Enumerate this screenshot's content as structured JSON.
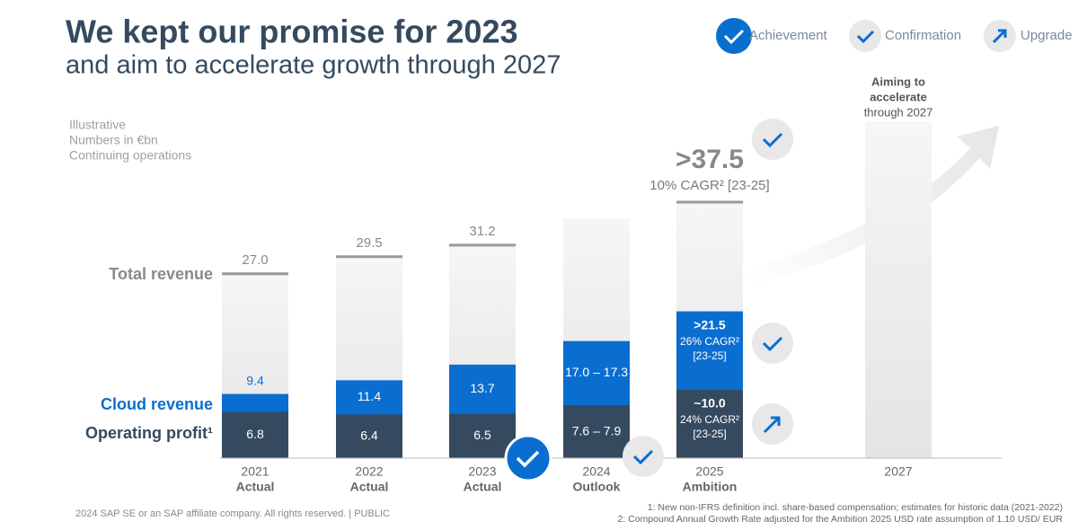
{
  "title": "We kept our promise for 2023",
  "subtitle": "and aim to accelerate growth through 2027",
  "legend": [
    "Achievement",
    "Confirmation",
    "Upgrade"
  ],
  "notes": [
    "Illustrative",
    "Numbers in €bn",
    "Continuing operations"
  ],
  "aim_note": [
    "Aiming to",
    "accelerate",
    "through 2027"
  ],
  "copyright": "2024 SAP SE or an SAP affiliate company. All rights reserved.  | PUBLIC",
  "footnotes": [
    "1: New non-IFRS definition incl. share-based compensation; estimates for historic data (2021-2022)",
    "2: Compound Annual Growth Rate adjusted for the Ambition 2025 USD rate assumption of 1.10 USD/ EUR"
  ],
  "chart_data": {
    "type": "overlap_bar",
    "categories": [
      "2021",
      "2022",
      "2023",
      "2024",
      "2025",
      "2027"
    ],
    "category_sublabels": [
      "Actual",
      "Actual",
      "Actual",
      "Outlook",
      "Ambition",
      null
    ],
    "ylim": [
      0,
      50
    ],
    "total_annotation": "10% CAGR² [23-25]",
    "series": [
      {
        "name": "Total revenue",
        "color": "#e6e6e6",
        "values": [
          27.0,
          29.5,
          31.2,
          35.1,
          37.5,
          49.3
        ],
        "value_labels": [
          "27.0",
          "29.5",
          "31.2",
          null,
          ">37.5",
          null
        ]
      },
      {
        "name": "Cloud revenue",
        "color": "#0a6ed1",
        "values": [
          9.4,
          11.4,
          13.7,
          17.15,
          21.5,
          null
        ],
        "value_labels": [
          "9.4",
          "11.4",
          "13.7",
          "17.0 – 17.3",
          ">21.5",
          null
        ],
        "annotations": [
          null,
          null,
          null,
          null,
          [
            "26% CAGR²",
            "[23-25]"
          ],
          null
        ]
      },
      {
        "name": "Operating profit¹",
        "color": "#354a5f",
        "values": [
          6.8,
          6.4,
          6.5,
          7.75,
          10.0,
          null
        ],
        "value_labels": [
          "6.8",
          "6.4",
          "6.5",
          "7.6 – 7.9",
          "~10.0",
          null
        ],
        "annotations": [
          null,
          null,
          null,
          null,
          [
            "24% CAGR²",
            "[23-25]"
          ],
          null
        ]
      }
    ]
  }
}
